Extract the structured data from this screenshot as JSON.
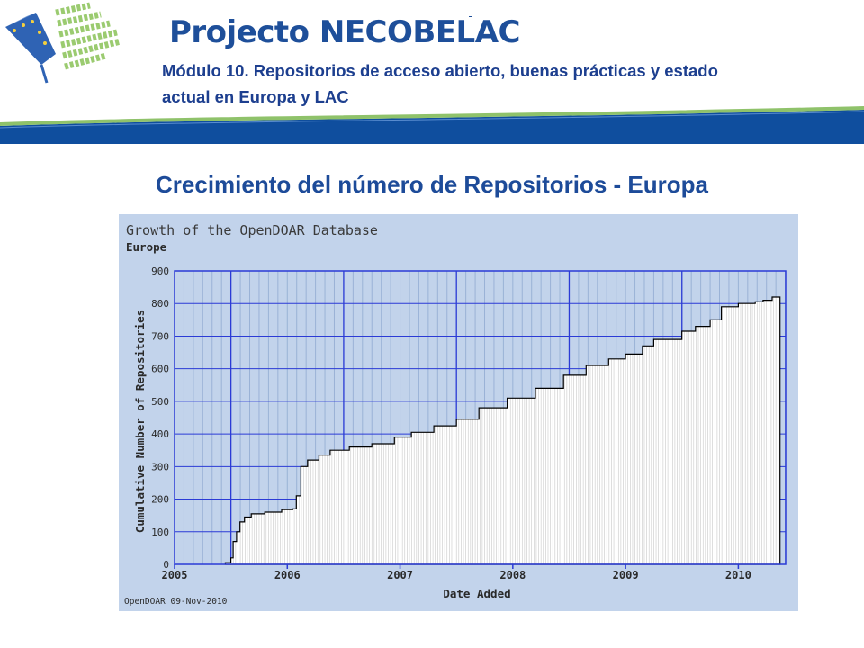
{
  "header": {
    "brand_prefix": "Projecto",
    "brand_name": "NECOBELAC",
    "subtitle": "Módulo 10. Repositorios de acceso abierto, buenas prácticas y estado actual en Europa y LAC"
  },
  "slide": {
    "title": "Crecimiento del número de Repositorios - Europa"
  },
  "colors": {
    "brand_blue": "#1e4f9a",
    "chart_background": "#c2d3eb",
    "grid_blue": "#2b3bd6",
    "band_blue": "#0f4e9e",
    "band_green": "#8fc26a"
  },
  "chart_data": {
    "type": "area",
    "title": "Growth of the OpenDOAR Database",
    "subtitle": "Europe",
    "xlabel": "Date Added",
    "ylabel": "Cumulative Number of Repositories",
    "footer": "OpenDOAR 09-Nov-2010",
    "xlim": [
      2005.0,
      2010.42
    ],
    "ylim": [
      0,
      900
    ],
    "yticks": [
      0,
      100,
      200,
      300,
      400,
      500,
      600,
      700,
      800,
      900
    ],
    "xticks": [
      {
        "value": 2005.0,
        "label": "2005"
      },
      {
        "value": 2006.0,
        "label": "2006"
      },
      {
        "value": 2007.0,
        "label": "2007"
      },
      {
        "value": 2008.0,
        "label": "2008"
      },
      {
        "value": 2009.0,
        "label": "2009"
      },
      {
        "value": 2010.0,
        "label": "2010"
      }
    ],
    "grid": true,
    "series": [
      {
        "x": [
          2005.45,
          2005.5,
          2005.52,
          2005.55,
          2005.58,
          2005.62,
          2005.68,
          2005.8,
          2005.95,
          2006.05,
          2006.08,
          2006.12,
          2006.18,
          2006.28,
          2006.38,
          2006.55,
          2006.75,
          2006.95,
          2007.1,
          2007.3,
          2007.5,
          2007.7,
          2007.95,
          2008.2,
          2008.45,
          2008.65,
          2008.85,
          2009.0,
          2009.15,
          2009.25,
          2009.5,
          2009.62,
          2009.75,
          2009.85,
          2010.0,
          2010.15,
          2010.22,
          2010.3,
          2010.37
        ],
        "y": [
          5,
          20,
          70,
          100,
          130,
          145,
          155,
          160,
          168,
          170,
          210,
          300,
          320,
          335,
          350,
          360,
          370,
          390,
          405,
          425,
          445,
          480,
          510,
          540,
          580,
          610,
          630,
          645,
          670,
          690,
          715,
          730,
          750,
          790,
          800,
          805,
          810,
          820,
          820
        ]
      }
    ]
  }
}
